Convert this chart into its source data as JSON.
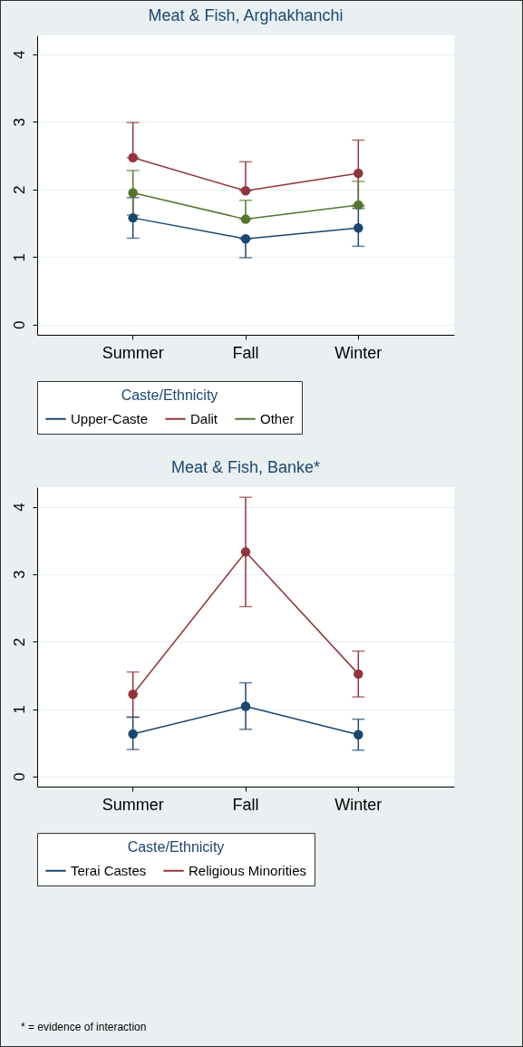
{
  "chart_data": [
    {
      "type": "line",
      "title": "Meat & Fish, Arghakhanchi",
      "categories": [
        "Summer",
        "Fall",
        "Winter"
      ],
      "legend_title": "Caste/Ethnicity",
      "legend": "bottom",
      "grid": "y",
      "marker": "circle",
      "ylim": [
        -0.15,
        4.28
      ],
      "yticks": [
        0,
        1,
        2,
        3,
        4
      ],
      "series": [
        {
          "name": "Upper-Caste",
          "color": "#1a476f",
          "values": [
            1.58,
            1.27,
            1.43
          ],
          "errors": [
            [
              1.28,
              1.88
            ],
            [
              0.99,
              1.27
            ],
            [
              1.16,
              1.72
            ]
          ]
        },
        {
          "name": "Dalit",
          "color": "#90353b",
          "values": [
            2.47,
            1.98,
            2.24
          ],
          "errors": [
            [
              2.47,
              2.99
            ],
            [
              1.98,
              2.41
            ],
            [
              1.75,
              2.73
            ]
          ]
        },
        {
          "name": "Other",
          "color": "#55752f",
          "values": [
            1.95,
            1.56,
            1.77
          ],
          "errors": [
            [
              1.62,
              2.28
            ],
            [
              1.56,
              1.84
            ],
            [
              1.77,
              2.12
            ]
          ]
        }
      ]
    },
    {
      "type": "line",
      "title": "Meat & Fish, Banke*",
      "categories": [
        "Summer",
        "Fall",
        "Winter"
      ],
      "legend_title": "Caste/Ethnicity",
      "legend": "bottom",
      "grid": "y",
      "marker": "circle",
      "ylim": [
        -0.15,
        4.29
      ],
      "yticks": [
        0,
        1,
        2,
        3,
        4
      ],
      "annotations": [
        "* = evidence of interaction"
      ],
      "series": [
        {
          "name": "Terai Castes",
          "color": "#1a476f",
          "values": [
            0.63,
            1.04,
            0.62
          ],
          "errors": [
            [
              0.4,
              0.88
            ],
            [
              0.7,
              1.39
            ],
            [
              0.39,
              0.85
            ]
          ]
        },
        {
          "name": "Religious Minorities",
          "color": "#90353b",
          "values": [
            1.22,
            3.33,
            1.52
          ],
          "errors": [
            [
              0.88,
              1.55
            ],
            [
              2.52,
              4.14
            ],
            [
              1.18,
              1.86
            ]
          ]
        }
      ]
    }
  ]
}
